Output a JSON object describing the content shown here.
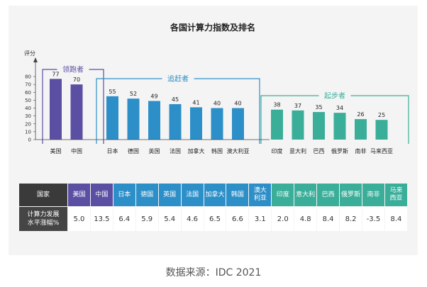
{
  "chart_data": {
    "type": "bar",
    "title": "各国计算力指数及排名",
    "ylabel": "评分",
    "yticks": [
      0,
      10,
      20,
      30,
      40,
      50,
      60,
      70,
      80
    ],
    "ylim": [
      0,
      80
    ],
    "groups": [
      {
        "name": "领跑者",
        "color": "#5b4fa3",
        "categories": [
          "美国",
          "中国"
        ],
        "values": [
          77,
          70
        ]
      },
      {
        "name": "追赶者",
        "color": "#2d8fc8",
        "categories": [
          "日本",
          "德国",
          "英国",
          "法国",
          "加拿大",
          "韩国",
          "澳大利亚"
        ],
        "values": [
          55,
          52,
          49,
          45,
          41,
          40,
          40
        ]
      },
      {
        "name": "起步者",
        "color": "#3aae99",
        "categories": [
          "印度",
          "意大利",
          "巴西",
          "俄罗斯",
          "南非",
          "马来西亚"
        ],
        "values": [
          38,
          37,
          35,
          34,
          26,
          25
        ]
      }
    ]
  },
  "table": {
    "header_label": "国家",
    "columns": [
      "美国",
      "中国",
      "日本",
      "德国",
      "英国",
      "法国",
      "加拿大",
      "韩国",
      "澳大利亚",
      "印度",
      "意大利",
      "巴西",
      "俄罗斯",
      "南非",
      "马来西亚"
    ],
    "column_labels": [
      "美国",
      "中国",
      "日本",
      "德国",
      "英国",
      "法国",
      "加拿大",
      "韩国",
      "澳大\n利亚",
      "印度",
      "意大利",
      "巴西",
      "俄罗斯",
      "南非",
      "马来\n西亚"
    ],
    "row_label": "计算力发展\n水平涨幅%",
    "values": [
      "5.0",
      "13.5",
      "6.4",
      "5.9",
      "5.4",
      "4.6",
      "6.5",
      "6.6",
      "3.1",
      "2.0",
      "4.8",
      "8.4",
      "8.2",
      "-3.5",
      "8.4"
    ],
    "column_colors": [
      "#5b4fa3",
      "#5b4fa3",
      "#2d8fc8",
      "#2d8fc8",
      "#2d8fc8",
      "#2d8fc8",
      "#2d8fc8",
      "#2d8fc8",
      "#2d8fc8",
      "#3aae99",
      "#3aae99",
      "#3aae99",
      "#3aae99",
      "#3aae99",
      "#3aae99"
    ]
  },
  "caption": "数据来源：IDC 2021"
}
